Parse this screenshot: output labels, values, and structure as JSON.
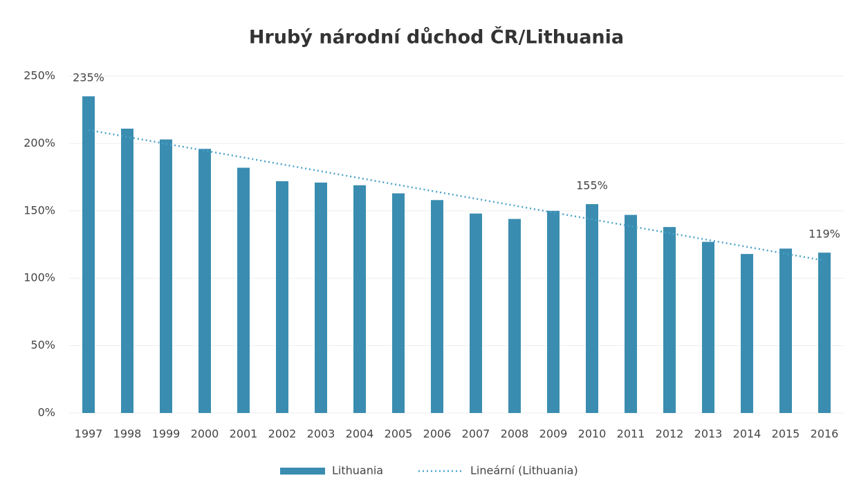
{
  "chart_data": {
    "type": "bar",
    "title": "Hrubý národní důchod ČR/Lithuania",
    "categories": [
      "1997",
      "1998",
      "1999",
      "2000",
      "2001",
      "2002",
      "2003",
      "2004",
      "2005",
      "2006",
      "2007",
      "2008",
      "2009",
      "2010",
      "2011",
      "2012",
      "2013",
      "2014",
      "2015",
      "2016"
    ],
    "series": [
      {
        "name": "Lithuania",
        "color": "#3a8db0",
        "values": [
          235,
          211,
          203,
          196,
          182,
          172,
          171,
          169,
          163,
          158,
          148,
          144,
          150,
          155,
          147,
          138,
          127,
          118,
          122,
          119
        ],
        "value_labels": [
          "235%",
          null,
          null,
          null,
          null,
          null,
          null,
          null,
          null,
          null,
          null,
          null,
          null,
          "155%",
          null,
          null,
          null,
          null,
          null,
          "119%"
        ]
      },
      {
        "name": "Lineární (Lithuania)",
        "type": "line",
        "style": "dotted",
        "color": "#4aa3c8",
        "values": [
          210,
          204.9,
          199.8,
          194.7,
          189.6,
          184.5,
          179.4,
          174.3,
          169.2,
          164.1,
          159,
          153.9,
          148.8,
          143.7,
          138.6,
          133.5,
          128.4,
          123.3,
          118.2,
          113.1
        ]
      }
    ],
    "ylim": [
      0,
      250
    ],
    "yticks": [
      {
        "value": 0,
        "label": "0%"
      },
      {
        "value": 50,
        "label": "50%"
      },
      {
        "value": 100,
        "label": "100%"
      },
      {
        "value": 150,
        "label": "150%"
      },
      {
        "value": 200,
        "label": "200%"
      },
      {
        "value": 250,
        "label": "250%"
      }
    ],
    "grid": true,
    "legend": "bottom"
  }
}
